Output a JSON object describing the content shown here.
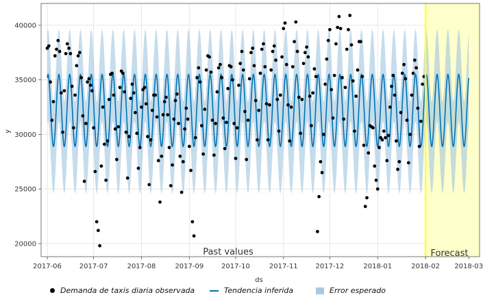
{
  "chart_data": {
    "type": "line",
    "xlabel": "ds",
    "ylabel": "y",
    "ylim": [
      18800,
      42000
    ],
    "xlim": [
      "2017-05-28",
      "2018-03-08"
    ],
    "x_ticks": [
      "2017-06-01",
      "2017-07-01",
      "2017-08-01",
      "2017-09-01",
      "2017-10-01",
      "2017-11-01",
      "2017-12-01",
      "2018-01-01",
      "2018-02-01",
      "2018-03-01"
    ],
    "x_tick_labels": [
      "2017-06",
      "2017-07",
      "2017-08",
      "2017-09",
      "2017-10",
      "2017-11",
      "2017-12",
      "2018-01",
      "2018-02",
      "2018-03"
    ],
    "y_ticks": [
      20000,
      25000,
      30000,
      35000,
      40000
    ],
    "y_tick_labels": [
      "20000",
      "25000",
      "30000",
      "35000",
      "40000"
    ],
    "grid": true,
    "legend_position": "bottom",
    "forecast_start": "2018-02-01",
    "forecast_end": "2018-03-01",
    "trend": {
      "base": 32200,
      "weekly_amplitude": 3300,
      "period_days": 7,
      "band_upper_offset": 4100,
      "band_lower_offset": 4300
    },
    "annotations": {
      "past": "Past values",
      "forecast": "Forecast"
    },
    "colors": {
      "trend": "#0072B2",
      "band": "#9fc5e0",
      "points": "#000000",
      "forecast_shade": "#ffffcc",
      "forecast_line": "#ffff33",
      "grid": "#e6e6e6"
    },
    "series": [
      {
        "name": "Demanda de taxis diaria observada",
        "kind": "scatter",
        "points": [
          [
            "2017-06-01",
            37900
          ],
          [
            "2017-06-02",
            38100
          ],
          [
            "2017-06-03",
            34800
          ],
          [
            "2017-06-04",
            31300
          ],
          [
            "2017-06-05",
            33000
          ],
          [
            "2017-06-06",
            37200
          ],
          [
            "2017-06-07",
            37800
          ],
          [
            "2017-06-08",
            38600
          ],
          [
            "2017-06-09",
            37600
          ],
          [
            "2017-06-10",
            33800
          ],
          [
            "2017-06-11",
            30200
          ],
          [
            "2017-06-12",
            34000
          ],
          [
            "2017-06-13",
            37400
          ],
          [
            "2017-06-14",
            38300
          ],
          [
            "2017-06-15",
            37900
          ],
          [
            "2017-06-16",
            37400
          ],
          [
            "2017-06-17",
            34400
          ],
          [
            "2017-06-18",
            30600
          ],
          [
            "2017-06-19",
            33600
          ],
          [
            "2017-06-20",
            36300
          ],
          [
            "2017-06-21",
            37200
          ],
          [
            "2017-06-22",
            37500
          ],
          [
            "2017-06-23",
            35200
          ],
          [
            "2017-06-24",
            31700
          ],
          [
            "2017-06-25",
            25700
          ],
          [
            "2017-06-26",
            31000
          ],
          [
            "2017-06-27",
            34800
          ],
          [
            "2017-06-28",
            35100
          ],
          [
            "2017-06-29",
            34500
          ],
          [
            "2017-06-30",
            34000
          ],
          [
            "2017-07-01",
            30600
          ],
          [
            "2017-07-02",
            26600
          ],
          [
            "2017-07-03",
            22000
          ],
          [
            "2017-07-04",
            21200
          ],
          [
            "2017-07-05",
            19800
          ],
          [
            "2017-07-06",
            27100
          ],
          [
            "2017-07-07",
            32500
          ],
          [
            "2017-07-08",
            29100
          ],
          [
            "2017-07-09",
            25800
          ],
          [
            "2017-07-10",
            29400
          ],
          [
            "2017-07-11",
            33200
          ],
          [
            "2017-07-12",
            35500
          ],
          [
            "2017-07-13",
            35600
          ],
          [
            "2017-07-14",
            33600
          ],
          [
            "2017-07-15",
            30500
          ],
          [
            "2017-07-16",
            27700
          ],
          [
            "2017-07-17",
            30700
          ],
          [
            "2017-07-18",
            34300
          ],
          [
            "2017-07-19",
            35800
          ],
          [
            "2017-07-20",
            35600
          ],
          [
            "2017-07-21",
            33900
          ],
          [
            "2017-07-22",
            30200
          ],
          [
            "2017-07-23",
            26000
          ],
          [
            "2017-07-24",
            29800
          ],
          [
            "2017-07-25",
            33300
          ],
          [
            "2017-07-26",
            34600
          ],
          [
            "2017-07-27",
            33800
          ],
          [
            "2017-07-28",
            32000
          ],
          [
            "2017-07-29",
            30100
          ],
          [
            "2017-07-30",
            26900
          ],
          [
            "2017-07-31",
            28800
          ],
          [
            "2017-08-01",
            32500
          ],
          [
            "2017-08-02",
            34100
          ],
          [
            "2017-08-03",
            34300
          ],
          [
            "2017-08-04",
            32800
          ],
          [
            "2017-08-05",
            29800
          ],
          [
            "2017-08-06",
            25400
          ],
          [
            "2017-08-07",
            29500
          ],
          [
            "2017-08-08",
            32200
          ],
          [
            "2017-08-09",
            33600
          ],
          [
            "2017-08-10",
            33600
          ],
          [
            "2017-08-11",
            31600
          ],
          [
            "2017-08-12",
            27600
          ],
          [
            "2017-08-13",
            23800
          ],
          [
            "2017-08-14",
            28000
          ],
          [
            "2017-08-15",
            31800
          ],
          [
            "2017-08-16",
            33000
          ],
          [
            "2017-08-17",
            33400
          ],
          [
            "2017-08-18",
            31800
          ],
          [
            "2017-08-19",
            28800
          ],
          [
            "2017-08-20",
            25300
          ],
          [
            "2017-08-21",
            27200
          ],
          [
            "2017-08-22",
            31400
          ],
          [
            "2017-08-23",
            33100
          ],
          [
            "2017-08-24",
            33700
          ],
          [
            "2017-08-25",
            31000
          ],
          [
            "2017-08-26",
            28000
          ],
          [
            "2017-08-27",
            24700
          ],
          [
            "2017-08-28",
            27500
          ],
          [
            "2017-08-29",
            30500
          ],
          [
            "2017-08-30",
            32400
          ],
          [
            "2017-08-31",
            31400
          ],
          [
            "2017-09-01",
            28900
          ],
          [
            "2017-09-02",
            26700
          ],
          [
            "2017-09-03",
            22000
          ],
          [
            "2017-09-04",
            20700
          ],
          [
            "2017-09-05",
            29700
          ],
          [
            "2017-09-06",
            35200
          ],
          [
            "2017-09-07",
            36100
          ],
          [
            "2017-09-08",
            34800
          ],
          [
            "2017-09-09",
            30800
          ],
          [
            "2017-09-10",
            28200
          ],
          [
            "2017-09-11",
            32300
          ],
          [
            "2017-09-12",
            35900
          ],
          [
            "2017-09-13",
            37200
          ],
          [
            "2017-09-14",
            37100
          ],
          [
            "2017-09-15",
            35700
          ],
          [
            "2017-09-16",
            31300
          ],
          [
            "2017-09-17",
            28100
          ],
          [
            "2017-09-18",
            31000
          ],
          [
            "2017-09-19",
            33900
          ],
          [
            "2017-09-20",
            36100
          ],
          [
            "2017-09-21",
            36400
          ],
          [
            "2017-09-22",
            35200
          ],
          [
            "2017-09-23",
            31500
          ],
          [
            "2017-09-24",
            28700
          ],
          [
            "2017-09-25",
            31100
          ],
          [
            "2017-09-26",
            34200
          ],
          [
            "2017-09-27",
            36300
          ],
          [
            "2017-09-28",
            36200
          ],
          [
            "2017-09-29",
            35000
          ],
          [
            "2017-09-30",
            31000
          ],
          [
            "2017-10-01",
            27800
          ],
          [
            "2017-10-02",
            30600
          ],
          [
            "2017-10-03",
            34500
          ],
          [
            "2017-10-04",
            36500
          ],
          [
            "2017-10-05",
            37600
          ],
          [
            "2017-10-06",
            35900
          ],
          [
            "2017-10-07",
            32100
          ],
          [
            "2017-10-08",
            27700
          ],
          [
            "2017-10-09",
            31300
          ],
          [
            "2017-10-10",
            35100
          ],
          [
            "2017-10-11",
            37500
          ],
          [
            "2017-10-12",
            37900
          ],
          [
            "2017-10-13",
            36300
          ],
          [
            "2017-10-14",
            33100
          ],
          [
            "2017-10-15",
            29500
          ],
          [
            "2017-10-16",
            32200
          ],
          [
            "2017-10-17",
            35600
          ],
          [
            "2017-10-18",
            37800
          ],
          [
            "2017-10-19",
            38300
          ],
          [
            "2017-10-20",
            36200
          ],
          [
            "2017-10-21",
            32800
          ],
          [
            "2017-10-22",
            29500
          ],
          [
            "2017-10-23",
            32700
          ],
          [
            "2017-10-24",
            35900
          ],
          [
            "2017-10-25",
            37600
          ],
          [
            "2017-10-26",
            38100
          ],
          [
            "2017-10-27",
            36800
          ],
          [
            "2017-10-28",
            33200
          ],
          [
            "2017-10-29",
            30300
          ],
          [
            "2017-10-30",
            33600
          ],
          [
            "2017-10-31",
            37100
          ],
          [
            "2017-11-01",
            39700
          ],
          [
            "2017-11-02",
            40200
          ],
          [
            "2017-11-03",
            36400
          ],
          [
            "2017-11-04",
            32700
          ],
          [
            "2017-11-05",
            29400
          ],
          [
            "2017-11-06",
            32500
          ],
          [
            "2017-11-07",
            36200
          ],
          [
            "2017-11-08",
            38500
          ],
          [
            "2017-11-09",
            40300
          ],
          [
            "2017-11-10",
            37600
          ],
          [
            "2017-11-11",
            33400
          ],
          [
            "2017-11-12",
            30100
          ],
          [
            "2017-11-13",
            33200
          ],
          [
            "2017-11-14",
            36500
          ],
          [
            "2017-11-15",
            37500
          ],
          [
            "2017-11-16",
            38000
          ],
          [
            "2017-11-17",
            37100
          ],
          [
            "2017-11-18",
            33500
          ],
          [
            "2017-11-19",
            30800
          ],
          [
            "2017-11-20",
            33800
          ],
          [
            "2017-11-21",
            36000
          ],
          [
            "2017-11-22",
            35300
          ],
          [
            "2017-11-23",
            21100
          ],
          [
            "2017-11-24",
            24300
          ],
          [
            "2017-11-25",
            27500
          ],
          [
            "2017-11-26",
            26500
          ],
          [
            "2017-11-27",
            30000
          ],
          [
            "2017-11-28",
            34600
          ],
          [
            "2017-11-29",
            36900
          ],
          [
            "2017-11-30",
            38600
          ],
          [
            "2017-12-01",
            39600
          ],
          [
            "2017-12-02",
            34100
          ],
          [
            "2017-12-03",
            31500
          ],
          [
            "2017-12-04",
            35400
          ],
          [
            "2017-12-05",
            38300
          ],
          [
            "2017-12-06",
            39800
          ],
          [
            "2017-12-07",
            40800
          ],
          [
            "2017-12-08",
            39700
          ],
          [
            "2017-12-09",
            35200
          ],
          [
            "2017-12-10",
            31400
          ],
          [
            "2017-12-11",
            34300
          ],
          [
            "2017-12-12",
            37800
          ],
          [
            "2017-12-13",
            39600
          ],
          [
            "2017-12-14",
            40900
          ],
          [
            "2017-12-15",
            38200
          ],
          [
            "2017-12-16",
            34900
          ],
          [
            "2017-12-17",
            30300
          ],
          [
            "2017-12-18",
            33500
          ],
          [
            "2017-12-19",
            35900
          ],
          [
            "2017-12-20",
            38500
          ],
          [
            "2017-12-21",
            38500
          ],
          [
            "2017-12-22",
            35300
          ],
          [
            "2017-12-23",
            29000
          ],
          [
            "2017-12-24",
            23400
          ],
          [
            "2017-12-25",
            24200
          ],
          [
            "2017-12-26",
            28300
          ],
          [
            "2017-12-27",
            30800
          ],
          [
            "2017-12-28",
            30700
          ],
          [
            "2017-12-29",
            30600
          ],
          [
            "2017-12-30",
            27100
          ],
          [
            "2017-12-31",
            25800
          ],
          [
            "2018-01-01",
            25000
          ],
          [
            "2018-01-02",
            28800
          ],
          [
            "2018-01-03",
            29700
          ],
          [
            "2018-01-04",
            29500
          ],
          [
            "2018-01-05",
            30300
          ],
          [
            "2018-01-06",
            29700
          ],
          [
            "2018-01-07",
            27600
          ],
          [
            "2018-01-08",
            29900
          ],
          [
            "2018-01-09",
            32500
          ],
          [
            "2018-01-10",
            34400
          ],
          [
            "2018-01-11",
            35400
          ],
          [
            "2018-01-12",
            33600
          ],
          [
            "2018-01-13",
            29400
          ],
          [
            "2018-01-14",
            26800
          ],
          [
            "2018-01-15",
            27500
          ],
          [
            "2018-01-16",
            32000
          ],
          [
            "2018-01-17",
            35600
          ],
          [
            "2018-01-18",
            36400
          ],
          [
            "2018-01-19",
            35100
          ],
          [
            "2018-01-20",
            31300
          ],
          [
            "2018-01-21",
            27400
          ],
          [
            "2018-01-22",
            30000
          ],
          [
            "2018-01-23",
            33600
          ],
          [
            "2018-01-24",
            35600
          ],
          [
            "2018-01-25",
            36800
          ],
          [
            "2018-01-26",
            36100
          ],
          [
            "2018-01-27",
            32400
          ],
          [
            "2018-01-28",
            28900
          ],
          [
            "2018-01-29",
            31200
          ],
          [
            "2018-01-30",
            34600
          ],
          [
            "2018-01-31",
            35300
          ]
        ]
      },
      {
        "name": "Tendencia inferida",
        "kind": "line"
      },
      {
        "name": "Error esperado",
        "kind": "band"
      }
    ]
  },
  "legend": {
    "observed": "Demanda de taxis diaria observada",
    "trend": "Tendencia inferida",
    "error": "Error esperado"
  }
}
